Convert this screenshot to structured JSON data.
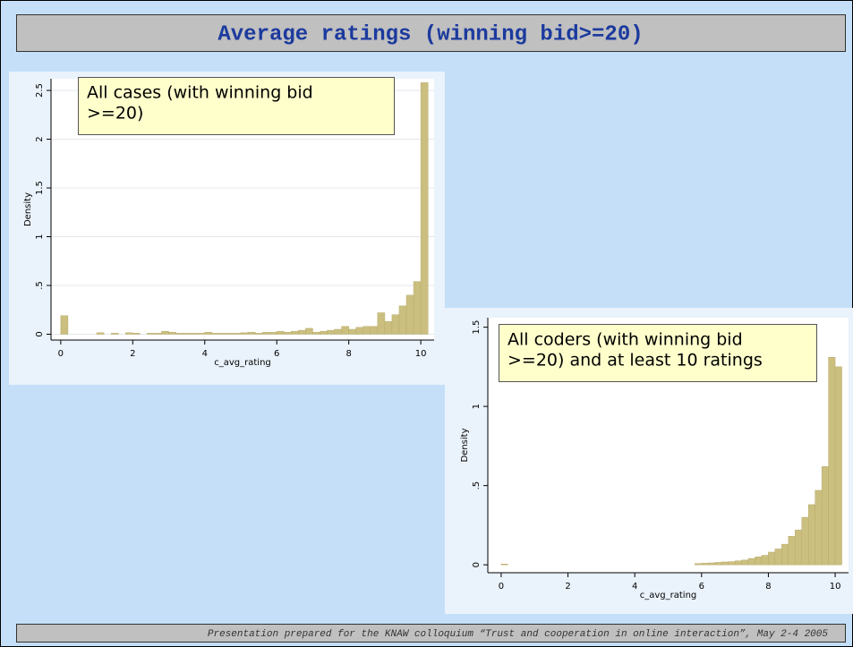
{
  "title": "Average ratings (winning bid>=20)",
  "footer": "Presentation prepared for the KNAW colloquium “Trust and cooperation in online interaction”, May 2-4 2005",
  "chart_data": [
    {
      "type": "histogram",
      "annotation": [
        "All cases (with winning bid",
        ">=20)"
      ],
      "x_label": "c_avg_rating",
      "y_label": "Density",
      "color": "#cbbf80",
      "grid": true,
      "bins": [
        0,
        0.2,
        0.4,
        0.6,
        0.8,
        1,
        1.2,
        1.4,
        1.6,
        1.8,
        2,
        2.2,
        2.4,
        2.6,
        2.8,
        3,
        3.2,
        3.4,
        3.6,
        3.8,
        4,
        4.2,
        4.4,
        4.6,
        4.8,
        5,
        5.2,
        5.4,
        5.6,
        5.8,
        6,
        6.2,
        6.4,
        6.6,
        6.8,
        7,
        7.2,
        7.4,
        7.6,
        7.8,
        8,
        8.2,
        8.4,
        8.6,
        8.8,
        9,
        9.2,
        9.4,
        9.6,
        9.8,
        10,
        10.2
      ],
      "counts": [
        0.19,
        0,
        0,
        0,
        0,
        0.015,
        0,
        0.01,
        0,
        0.015,
        0.01,
        0,
        0.01,
        0.01,
        0.03,
        0.02,
        0.01,
        0.01,
        0.01,
        0.01,
        0.02,
        0.01,
        0.01,
        0.01,
        0.01,
        0.015,
        0.02,
        0.01,
        0.02,
        0.02,
        0.03,
        0.02,
        0.03,
        0.04,
        0.06,
        0.02,
        0.03,
        0.04,
        0.05,
        0.08,
        0.05,
        0.07,
        0.08,
        0.08,
        0.22,
        0.13,
        0.2,
        0.29,
        0.4,
        0.54,
        2.58
      ],
      "xlim": [
        -0.27,
        10.37
      ],
      "xticks": [
        0,
        2,
        4,
        6,
        8,
        10
      ],
      "ylim": [
        -0.06,
        2.62
      ],
      "yticks": [
        0,
        {
          "value": 0.5,
          "label": ".5"
        },
        1,
        1.5,
        2,
        2.5
      ]
    },
    {
      "type": "histogram",
      "annotation": [
        "All coders (with winning bid",
        ">=20) and at least 10 ratings"
      ],
      "x_label": "c_avg_rating",
      "y_label": "Density",
      "color": "#cbbf80",
      "grid": false,
      "bins": [
        0,
        0.2,
        0.4,
        0.6,
        0.8,
        1,
        1.2,
        1.4,
        1.6,
        1.8,
        2,
        2.2,
        2.4,
        2.6,
        2.8,
        3,
        3.2,
        3.4,
        3.6,
        3.8,
        4,
        4.2,
        4.4,
        4.6,
        4.8,
        5,
        5.2,
        5.4,
        5.6,
        5.8,
        6,
        6.2,
        6.4,
        6.6,
        6.8,
        7,
        7.2,
        7.4,
        7.6,
        7.8,
        8,
        8.2,
        8.4,
        8.6,
        8.8,
        9,
        9.2,
        9.4,
        9.6,
        9.8,
        10,
        10.2
      ],
      "counts": [
        0.005,
        0,
        0,
        0,
        0,
        0,
        0,
        0,
        0,
        0,
        0,
        0,
        0,
        0,
        0,
        0,
        0,
        0,
        0,
        0,
        0,
        0,
        0,
        0,
        0,
        0,
        0,
        0,
        0,
        0.008,
        0.01,
        0.012,
        0.015,
        0.018,
        0.02,
        0.025,
        0.03,
        0.04,
        0.05,
        0.06,
        0.08,
        0.1,
        0.13,
        0.18,
        0.22,
        0.3,
        0.38,
        0.47,
        0.62,
        1.31,
        1.25
      ],
      "xlim": [
        -0.4,
        10.4
      ],
      "xticks": [
        0,
        2,
        4,
        6,
        8,
        10
      ],
      "ylim": [
        -0.05,
        1.56
      ],
      "yticks": [
        0,
        {
          "value": 0.5,
          "label": ".5"
        },
        1,
        1.5
      ]
    }
  ]
}
